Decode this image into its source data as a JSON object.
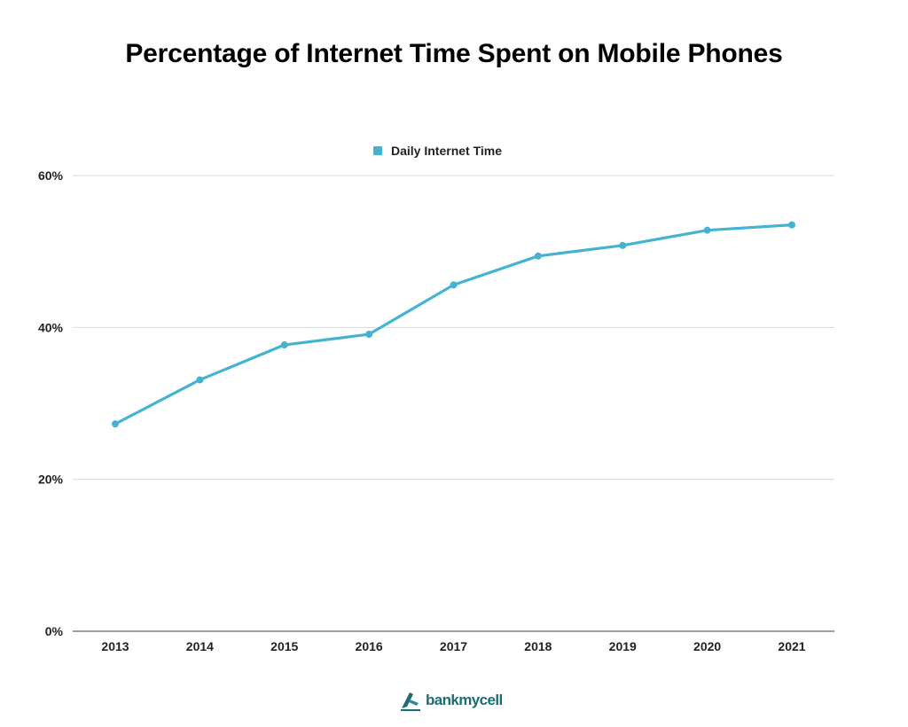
{
  "chart_data": {
    "type": "line",
    "title": "Percentage of Internet Time Spent on Mobile Phones",
    "categories": [
      "2013",
      "2014",
      "2015",
      "2016",
      "2017",
      "2018",
      "2019",
      "2020",
      "2021"
    ],
    "series": [
      {
        "name": "Daily Internet Time",
        "color": "#44b3d1",
        "values": [
          27.3,
          33.1,
          37.7,
          39.1,
          45.6,
          49.4,
          50.8,
          52.8,
          53.5
        ]
      }
    ],
    "ylim": [
      0,
      60
    ],
    "y_ticks": [
      {
        "value": 0,
        "label": "0%"
      },
      {
        "value": 20,
        "label": "20%"
      },
      {
        "value": 40,
        "label": "40%"
      },
      {
        "value": 60,
        "label": "60%"
      }
    ],
    "grid": true,
    "legend_position": "top-center",
    "xlabel": "",
    "ylabel": ""
  },
  "branding": {
    "logo_text": "bankmycell",
    "logo_color": "#1a6d74"
  }
}
